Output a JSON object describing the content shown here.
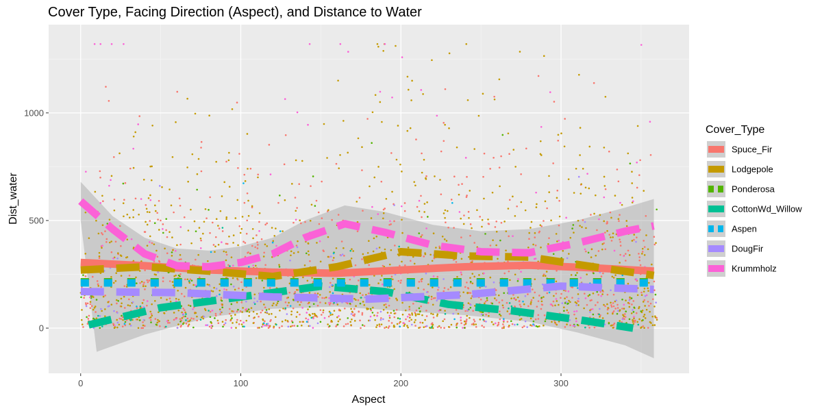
{
  "chart_data": {
    "type": "scatter",
    "title": "Cover Type, Facing Direction (Aspect), and Distance to Water",
    "xlabel": "Aspect",
    "ylabel": "Dist_water",
    "xlim": [
      -20,
      380
    ],
    "ylim": [
      -210,
      1410
    ],
    "x_ticks": [
      0,
      100,
      200,
      300
    ],
    "y_ticks": [
      0,
      500,
      1000
    ],
    "grid": true,
    "legend": {
      "title": "Cover_Type",
      "position": "right"
    },
    "series": [
      {
        "name": "Spuce_Fir",
        "color": "#F8766D",
        "linetype": "solid",
        "smooth": [
          [
            0,
            305
          ],
          [
            40,
            290
          ],
          [
            80,
            270
          ],
          [
            120,
            260
          ],
          [
            160,
            255
          ],
          [
            200,
            270
          ],
          [
            240,
            285
          ],
          [
            280,
            292
          ],
          [
            320,
            280
          ],
          [
            358,
            265
          ]
        ]
      },
      {
        "name": "Lodgepole",
        "color": "#C49A00",
        "linetype": "dashed",
        "smooth": [
          [
            0,
            270
          ],
          [
            40,
            285
          ],
          [
            80,
            265
          ],
          [
            120,
            240
          ],
          [
            160,
            285
          ],
          [
            200,
            355
          ],
          [
            240,
            335
          ],
          [
            280,
            330
          ],
          [
            320,
            285
          ],
          [
            358,
            245
          ]
        ]
      },
      {
        "name": "Ponderosa",
        "color": "#53B400",
        "linetype": "dotted",
        "smooth": [
          [
            0,
            215
          ],
          [
            100,
            215
          ],
          [
            200,
            215
          ],
          [
            300,
            215
          ],
          [
            358,
            215
          ]
        ]
      },
      {
        "name": "CottonWd_Willow",
        "color": "#00C094",
        "linetype": "dashed",
        "smooth": [
          [
            5,
            15
          ],
          [
            50,
            95
          ],
          [
            100,
            145
          ],
          [
            150,
            195
          ],
          [
            190,
            170
          ],
          [
            230,
            110
          ],
          [
            270,
            80
          ],
          [
            310,
            40
          ],
          [
            345,
            0
          ]
        ]
      },
      {
        "name": "Aspen",
        "color": "#00B6EB",
        "linetype": "dotted",
        "smooth": [
          [
            0,
            210
          ],
          [
            100,
            210
          ],
          [
            200,
            210
          ],
          [
            300,
            210
          ],
          [
            358,
            210
          ]
        ]
      },
      {
        "name": "DougFir",
        "color": "#A58AFF",
        "linetype": "dashed",
        "smooth": [
          [
            0,
            170
          ],
          [
            60,
            165
          ],
          [
            120,
            145
          ],
          [
            180,
            135
          ],
          [
            240,
            155
          ],
          [
            300,
            195
          ],
          [
            358,
            180
          ]
        ]
      },
      {
        "name": "Krummholz",
        "color": "#FB61D7",
        "linetype": "dashed",
        "smooth": [
          [
            0,
            590
          ],
          [
            20,
            460
          ],
          [
            40,
            345
          ],
          [
            60,
            290
          ],
          [
            80,
            285
          ],
          [
            100,
            305
          ],
          [
            120,
            345
          ],
          [
            140,
            420
          ],
          [
            165,
            485
          ],
          [
            190,
            445
          ],
          [
            220,
            385
          ],
          [
            250,
            355
          ],
          [
            280,
            350
          ],
          [
            310,
            395
          ],
          [
            340,
            450
          ],
          [
            358,
            475
          ]
        ]
      }
    ],
    "confidence_band": {
      "upper": [
        [
          0,
          680
        ],
        [
          20,
          520
        ],
        [
          40,
          420
        ],
        [
          60,
          370
        ],
        [
          80,
          360
        ],
        [
          100,
          380
        ],
        [
          120,
          420
        ],
        [
          140,
          500
        ],
        [
          165,
          570
        ],
        [
          190,
          540
        ],
        [
          220,
          480
        ],
        [
          250,
          450
        ],
        [
          280,
          460
        ],
        [
          310,
          500
        ],
        [
          340,
          560
        ],
        [
          358,
          600
        ]
      ],
      "lower": [
        [
          0,
          500
        ],
        [
          10,
          -110
        ],
        [
          40,
          -30
        ],
        [
          80,
          50
        ],
        [
          120,
          90
        ],
        [
          160,
          100
        ],
        [
          200,
          80
        ],
        [
          240,
          60
        ],
        [
          280,
          30
        ],
        [
          310,
          -20
        ],
        [
          340,
          -80
        ],
        [
          358,
          -140
        ]
      ]
    }
  }
}
